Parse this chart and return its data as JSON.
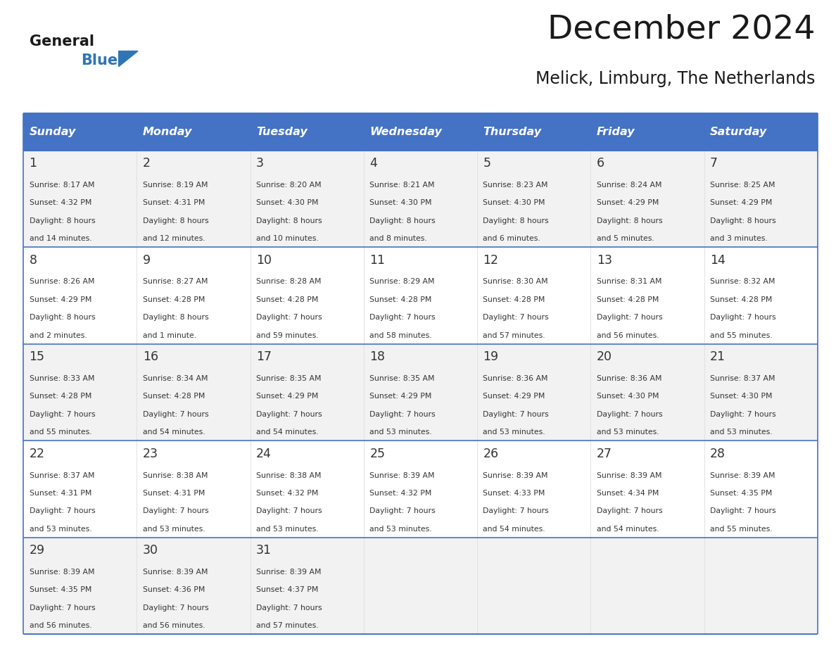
{
  "title": "December 2024",
  "subtitle": "Melick, Limburg, The Netherlands",
  "days_of_week": [
    "Sunday",
    "Monday",
    "Tuesday",
    "Wednesday",
    "Thursday",
    "Friday",
    "Saturday"
  ],
  "header_bg": "#4472C4",
  "header_text_color": "#FFFFFF",
  "day_num_color": "#333333",
  "cell_bg_odd": "#F2F2F2",
  "cell_bg_even": "#FFFFFF",
  "border_color": "#4472C4",
  "text_color": "#333333",
  "generalblue_black": "#1a1a1a",
  "generalblue_blue": "#2E75B6",
  "calendar_data": [
    [
      {
        "day": 1,
        "sunrise": "8:17 AM",
        "sunset": "4:32 PM",
        "daylight_h": "8 hours",
        "daylight_m": "14 minutes."
      },
      {
        "day": 2,
        "sunrise": "8:19 AM",
        "sunset": "4:31 PM",
        "daylight_h": "8 hours",
        "daylight_m": "12 minutes."
      },
      {
        "day": 3,
        "sunrise": "8:20 AM",
        "sunset": "4:30 PM",
        "daylight_h": "8 hours",
        "daylight_m": "10 minutes."
      },
      {
        "day": 4,
        "sunrise": "8:21 AM",
        "sunset": "4:30 PM",
        "daylight_h": "8 hours",
        "daylight_m": "8 minutes."
      },
      {
        "day": 5,
        "sunrise": "8:23 AM",
        "sunset": "4:30 PM",
        "daylight_h": "8 hours",
        "daylight_m": "6 minutes."
      },
      {
        "day": 6,
        "sunrise": "8:24 AM",
        "sunset": "4:29 PM",
        "daylight_h": "8 hours",
        "daylight_m": "5 minutes."
      },
      {
        "day": 7,
        "sunrise": "8:25 AM",
        "sunset": "4:29 PM",
        "daylight_h": "8 hours",
        "daylight_m": "3 minutes."
      }
    ],
    [
      {
        "day": 8,
        "sunrise": "8:26 AM",
        "sunset": "4:29 PM",
        "daylight_h": "8 hours",
        "daylight_m": "2 minutes."
      },
      {
        "day": 9,
        "sunrise": "8:27 AM",
        "sunset": "4:28 PM",
        "daylight_h": "8 hours",
        "daylight_m": "1 minute."
      },
      {
        "day": 10,
        "sunrise": "8:28 AM",
        "sunset": "4:28 PM",
        "daylight_h": "7 hours",
        "daylight_m": "59 minutes."
      },
      {
        "day": 11,
        "sunrise": "8:29 AM",
        "sunset": "4:28 PM",
        "daylight_h": "7 hours",
        "daylight_m": "58 minutes."
      },
      {
        "day": 12,
        "sunrise": "8:30 AM",
        "sunset": "4:28 PM",
        "daylight_h": "7 hours",
        "daylight_m": "57 minutes."
      },
      {
        "day": 13,
        "sunrise": "8:31 AM",
        "sunset": "4:28 PM",
        "daylight_h": "7 hours",
        "daylight_m": "56 minutes."
      },
      {
        "day": 14,
        "sunrise": "8:32 AM",
        "sunset": "4:28 PM",
        "daylight_h": "7 hours",
        "daylight_m": "55 minutes."
      }
    ],
    [
      {
        "day": 15,
        "sunrise": "8:33 AM",
        "sunset": "4:28 PM",
        "daylight_h": "7 hours",
        "daylight_m": "55 minutes."
      },
      {
        "day": 16,
        "sunrise": "8:34 AM",
        "sunset": "4:28 PM",
        "daylight_h": "7 hours",
        "daylight_m": "54 minutes."
      },
      {
        "day": 17,
        "sunrise": "8:35 AM",
        "sunset": "4:29 PM",
        "daylight_h": "7 hours",
        "daylight_m": "54 minutes."
      },
      {
        "day": 18,
        "sunrise": "8:35 AM",
        "sunset": "4:29 PM",
        "daylight_h": "7 hours",
        "daylight_m": "53 minutes."
      },
      {
        "day": 19,
        "sunrise": "8:36 AM",
        "sunset": "4:29 PM",
        "daylight_h": "7 hours",
        "daylight_m": "53 minutes."
      },
      {
        "day": 20,
        "sunrise": "8:36 AM",
        "sunset": "4:30 PM",
        "daylight_h": "7 hours",
        "daylight_m": "53 minutes."
      },
      {
        "day": 21,
        "sunrise": "8:37 AM",
        "sunset": "4:30 PM",
        "daylight_h": "7 hours",
        "daylight_m": "53 minutes."
      }
    ],
    [
      {
        "day": 22,
        "sunrise": "8:37 AM",
        "sunset": "4:31 PM",
        "daylight_h": "7 hours",
        "daylight_m": "53 minutes."
      },
      {
        "day": 23,
        "sunrise": "8:38 AM",
        "sunset": "4:31 PM",
        "daylight_h": "7 hours",
        "daylight_m": "53 minutes."
      },
      {
        "day": 24,
        "sunrise": "8:38 AM",
        "sunset": "4:32 PM",
        "daylight_h": "7 hours",
        "daylight_m": "53 minutes."
      },
      {
        "day": 25,
        "sunrise": "8:39 AM",
        "sunset": "4:32 PM",
        "daylight_h": "7 hours",
        "daylight_m": "53 minutes."
      },
      {
        "day": 26,
        "sunrise": "8:39 AM",
        "sunset": "4:33 PM",
        "daylight_h": "7 hours",
        "daylight_m": "54 minutes."
      },
      {
        "day": 27,
        "sunrise": "8:39 AM",
        "sunset": "4:34 PM",
        "daylight_h": "7 hours",
        "daylight_m": "54 minutes."
      },
      {
        "day": 28,
        "sunrise": "8:39 AM",
        "sunset": "4:35 PM",
        "daylight_h": "7 hours",
        "daylight_m": "55 minutes."
      }
    ],
    [
      {
        "day": 29,
        "sunrise": "8:39 AM",
        "sunset": "4:35 PM",
        "daylight_h": "7 hours",
        "daylight_m": "56 minutes."
      },
      {
        "day": 30,
        "sunrise": "8:39 AM",
        "sunset": "4:36 PM",
        "daylight_h": "7 hours",
        "daylight_m": "56 minutes."
      },
      {
        "day": 31,
        "sunrise": "8:39 AM",
        "sunset": "4:37 PM",
        "daylight_h": "7 hours",
        "daylight_m": "57 minutes."
      },
      null,
      null,
      null,
      null
    ]
  ]
}
